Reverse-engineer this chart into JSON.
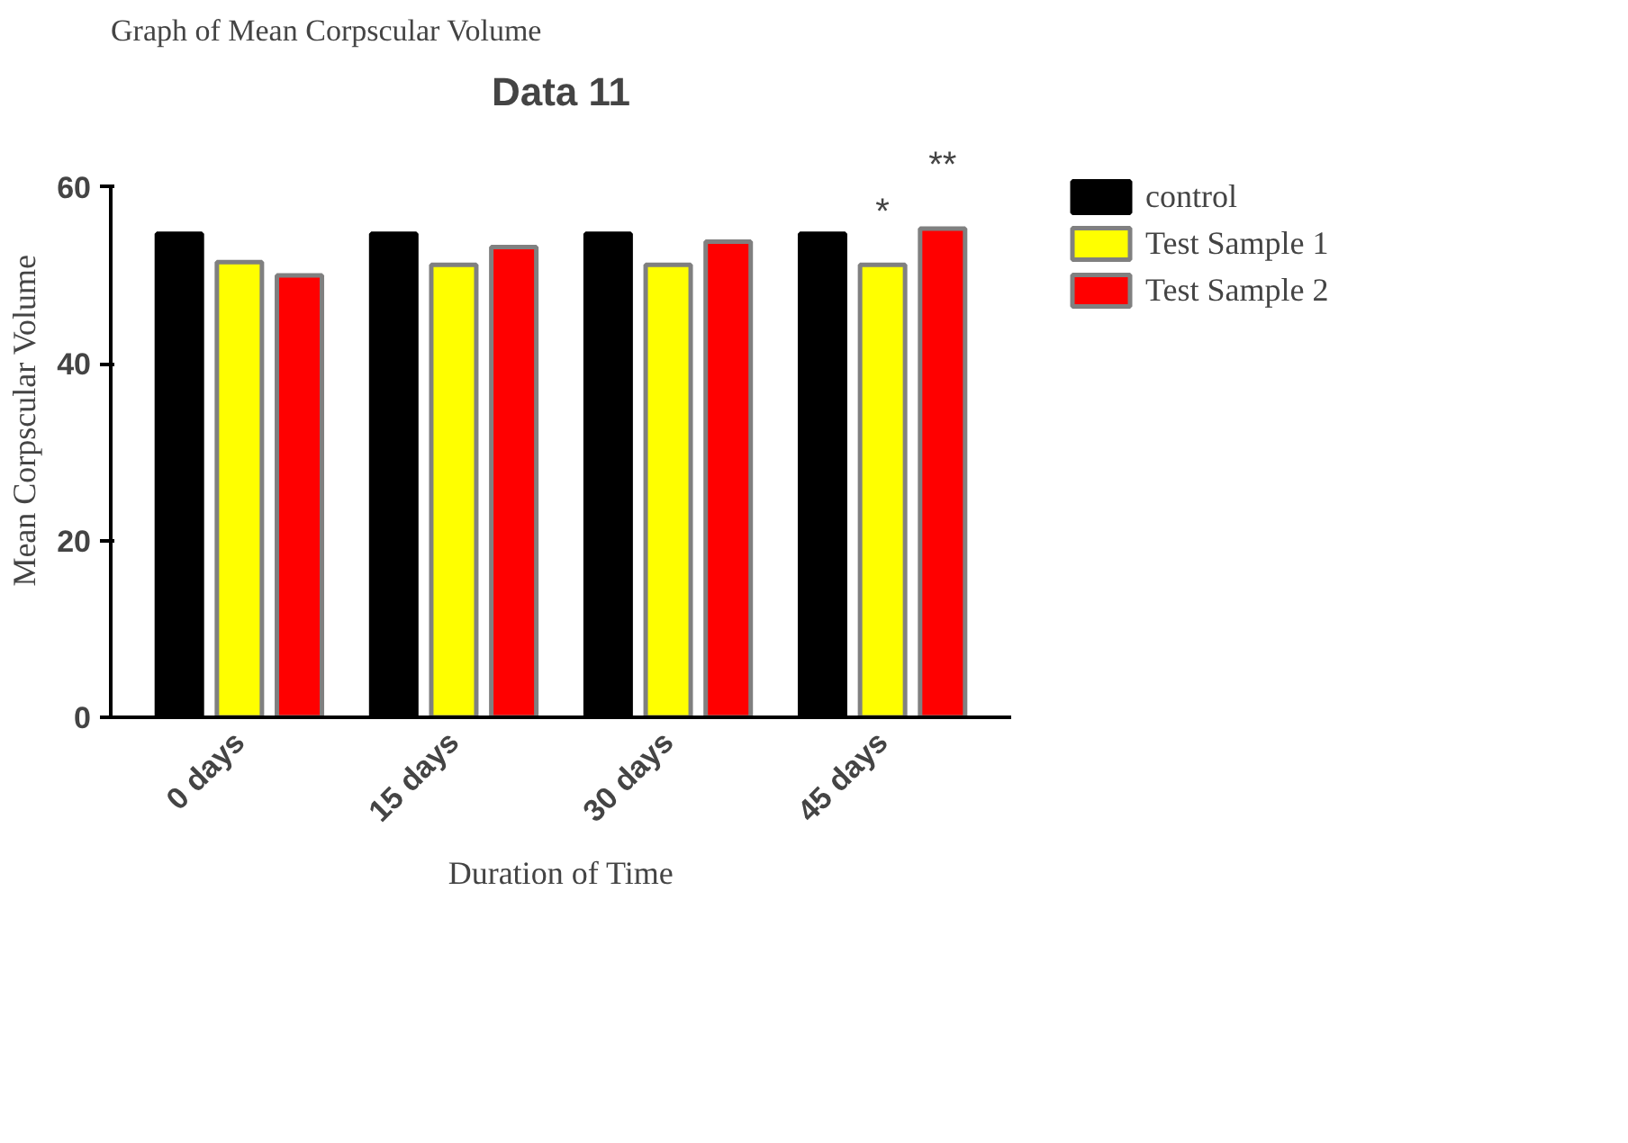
{
  "chart_data": {
    "type": "bar",
    "title": "Graph of Mean Corpscular Volume",
    "subtitle": "Data 11",
    "xlabel": "Duration of Time",
    "ylabel": "Mean Corpscular Volume",
    "categories": [
      "0 days",
      "15 days",
      "30 days",
      "45 days"
    ],
    "series": [
      {
        "name": "control",
        "color": "#000000",
        "values": [
          54.7,
          54.7,
          54.7,
          54.7
        ]
      },
      {
        "name": "Test Sample 1",
        "color": "#ffff00",
        "values": [
          51.5,
          51.2,
          51.2,
          51.2
        ]
      },
      {
        "name": "Test Sample 2",
        "color": "#ff0000",
        "values": [
          50.0,
          53.2,
          53.8,
          55.3
        ]
      }
    ],
    "annotations": [
      "*",
      "**"
    ],
    "ylim": [
      0,
      60
    ],
    "yticks": [
      0,
      20,
      40,
      60
    ],
    "grid": false,
    "legend": "top right"
  }
}
